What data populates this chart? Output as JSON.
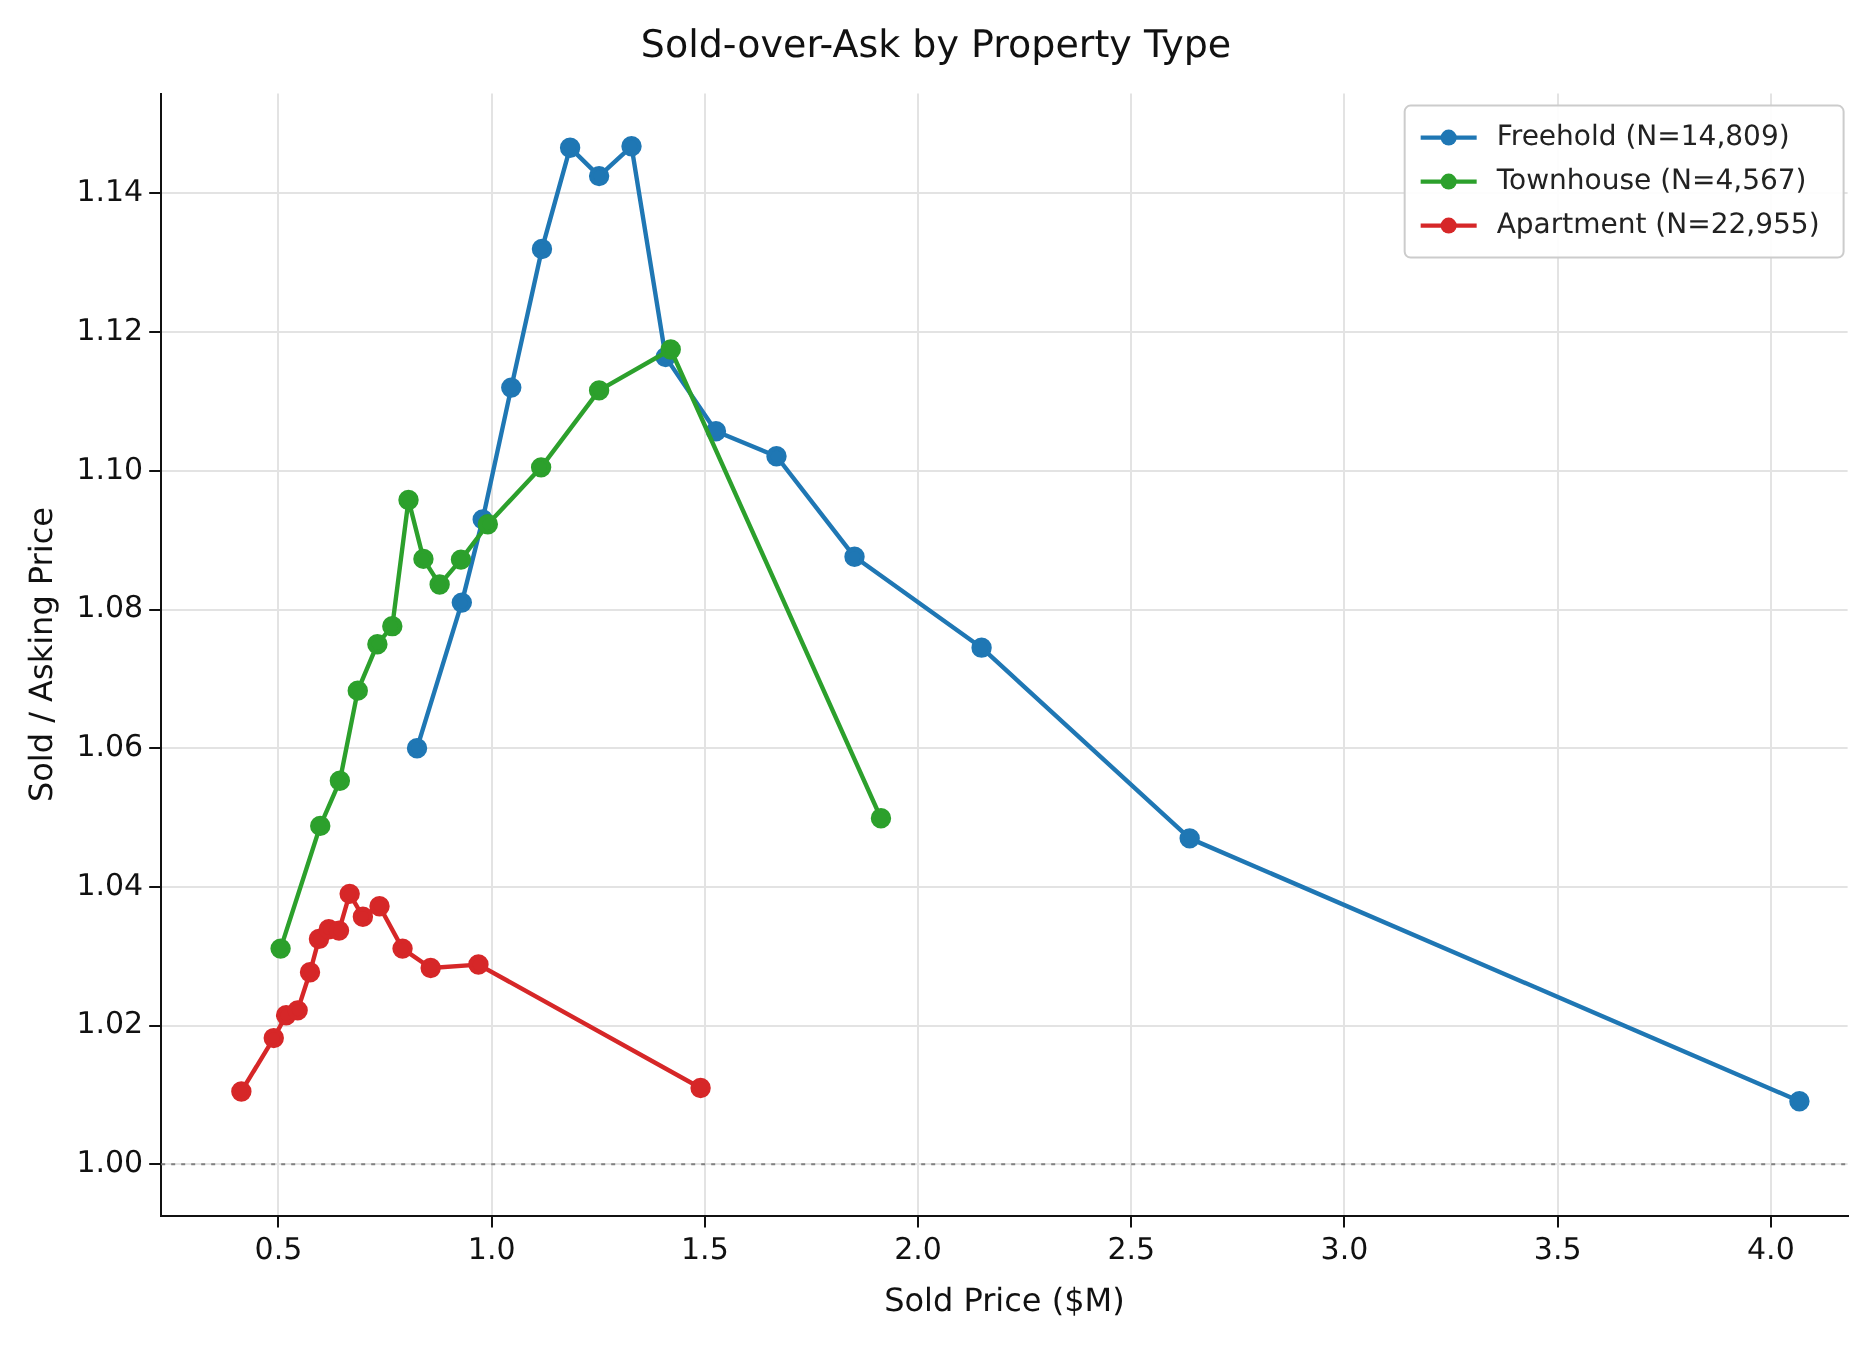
{
  "chart_data": {
    "type": "line",
    "title": "Sold-over-Ask by Property Type",
    "xlabel": "Sold Price ($M)",
    "ylabel": "Sold / Asking Price",
    "xlim": [
      0.225,
      4.18
    ],
    "xticks": [
      {
        "value": 0.5,
        "label": "0.5"
      },
      {
        "value": 1,
        "label": "1.0"
      },
      {
        "value": 1.5,
        "label": "1.5"
      },
      {
        "value": 2,
        "label": "2.0"
      },
      {
        "value": 2.5,
        "label": "2.5"
      },
      {
        "value": 3,
        "label": "3.0"
      },
      {
        "value": 3.5,
        "label": "3.5"
      },
      {
        "value": 4,
        "label": "4.0"
      }
    ],
    "ylim": [
      0.9926,
      1.1544
    ],
    "yticks": [
      {
        "value": 1,
        "label": "1.00"
      },
      {
        "value": 1.02,
        "label": "1.02"
      },
      {
        "value": 1.04,
        "label": "1.04"
      },
      {
        "value": 1.06,
        "label": "1.06"
      },
      {
        "value": 1.08,
        "label": "1.08"
      },
      {
        "value": 1.1,
        "label": "1.10"
      },
      {
        "value": 1.12,
        "label": "1.12"
      },
      {
        "value": 1.14,
        "label": "1.14"
      }
    ],
    "grid": true,
    "legend": "top right",
    "marker": "circle",
    "line_style": "solid",
    "ref_lines": [
      {
        "axis": "y",
        "value": 1,
        "color": "#808080",
        "line_style": "dotted"
      }
    ],
    "series": [
      {
        "name": "Freehold (N=14,809)",
        "color": "#1f77b4",
        "x": [
          0.825,
          0.93,
          0.979,
          1.046,
          1.118,
          1.184,
          1.252,
          1.328,
          1.408,
          1.526,
          1.668,
          1.851,
          2.149,
          2.637,
          4.067
        ],
        "values": [
          1.06,
          1.081,
          1.093,
          1.112,
          1.132,
          1.1466,
          1.1425,
          1.1468,
          1.1164,
          1.1057,
          1.1021,
          1.0876,
          1.0745,
          1.047,
          1.0091
        ]
      },
      {
        "name": "Townhouse (N=4,567)",
        "color": "#2ca02c",
        "x": [
          0.505,
          0.598,
          0.644,
          0.686,
          0.732,
          0.767,
          0.805,
          0.84,
          0.878,
          0.928,
          0.991,
          1.116,
          1.252,
          1.42,
          1.913
        ],
        "values": [
          1.0311,
          1.0488,
          1.0553,
          1.0683,
          1.075,
          1.0776,
          1.0958,
          1.0873,
          1.0836,
          1.0872,
          1.0923,
          1.1005,
          1.1116,
          1.1175,
          1.0499
        ]
      },
      {
        "name": "Apartment (N=22,955)",
        "color": "#d62728",
        "x": [
          0.413,
          0.489,
          0.518,
          0.545,
          0.574,
          0.595,
          0.618,
          0.642,
          0.667,
          0.698,
          0.737,
          0.791,
          0.857,
          0.969,
          1.49
        ],
        "values": [
          1.0105,
          1.0182,
          1.0215,
          1.0222,
          1.0277,
          1.0325,
          1.0339,
          1.0337,
          1.039,
          1.0357,
          1.0372,
          1.0311,
          1.0283,
          1.0288,
          1.011
        ]
      }
    ]
  }
}
